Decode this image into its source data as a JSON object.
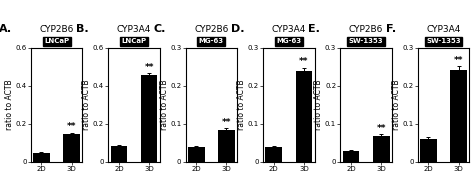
{
  "chart_data": [
    {
      "type": "bar",
      "title": "CYP2B6",
      "subtitle": "LNCaP",
      "y_label": "ratio to ACTB",
      "categories": [
        "2D",
        "3D"
      ],
      "values": [
        0.045,
        0.145
      ],
      "errors": [
        0.005,
        0.008
      ],
      "color": "#000000",
      "ylim": [
        0,
        0.6
      ],
      "yticks": [
        0,
        0.2,
        0.4,
        0.6
      ],
      "annotations": [
        {
          "text": "A."
        },
        {
          "text": "**",
          "category": "3D"
        }
      ]
    },
    {
      "type": "bar",
      "title": "CYP3A4",
      "subtitle": "LNCaP",
      "y_label": "ratio to ACTB",
      "categories": [
        "2D",
        "3D"
      ],
      "values": [
        0.085,
        0.455
      ],
      "errors": [
        0.005,
        0.012
      ],
      "color": "#000000",
      "ylim": [
        0,
        0.6
      ],
      "yticks": [
        0,
        0.2,
        0.4,
        0.6
      ],
      "annotations": [
        {
          "text": "B."
        },
        {
          "text": "**",
          "category": "3D"
        }
      ]
    },
    {
      "type": "bar",
      "title": "CYP2B6",
      "subtitle": "MG-63",
      "y_label": "ratio to ACTB",
      "categories": [
        "2D",
        "3D"
      ],
      "values": [
        0.038,
        0.083
      ],
      "errors": [
        0.003,
        0.005
      ],
      "color": "#000000",
      "ylim": [
        0,
        0.3
      ],
      "yticks": [
        0,
        0.1,
        0.2,
        0.3
      ],
      "annotations": [
        {
          "text": "C."
        },
        {
          "text": "**",
          "category": "3D"
        }
      ]
    },
    {
      "type": "bar",
      "title": "CYP3A4",
      "subtitle": "MG-63",
      "y_label": "ratio to ACTB",
      "categories": [
        "2D",
        "3D"
      ],
      "values": [
        0.038,
        0.24
      ],
      "errors": [
        0.003,
        0.008
      ],
      "color": "#000000",
      "ylim": [
        0,
        0.3
      ],
      "yticks": [
        0,
        0.1,
        0.2,
        0.3
      ],
      "annotations": [
        {
          "text": "D."
        },
        {
          "text": "**",
          "category": "3D"
        }
      ]
    },
    {
      "type": "bar",
      "title": "CYP2B6",
      "subtitle": "SW-1353",
      "y_label": "ratio to ACTB",
      "categories": [
        "2D",
        "3D"
      ],
      "values": [
        0.028,
        0.068
      ],
      "errors": [
        0.003,
        0.005
      ],
      "color": "#000000",
      "ylim": [
        0,
        0.3
      ],
      "yticks": [
        0,
        0.1,
        0.2,
        0.3
      ],
      "annotations": [
        {
          "text": "E."
        },
        {
          "text": "**",
          "category": "3D"
        }
      ]
    },
    {
      "type": "bar",
      "title": "CYP3A4",
      "subtitle": "SW-1353",
      "y_label": "ratio to ACTB",
      "categories": [
        "2D",
        "3D"
      ],
      "values": [
        0.06,
        0.242
      ],
      "errors": [
        0.005,
        0.009
      ],
      "color": "#000000",
      "ylim": [
        0,
        0.3
      ],
      "yticks": [
        0,
        0.1,
        0.2,
        0.3
      ],
      "annotations": [
        {
          "text": "F."
        },
        {
          "text": "**",
          "category": "3D"
        }
      ]
    }
  ]
}
